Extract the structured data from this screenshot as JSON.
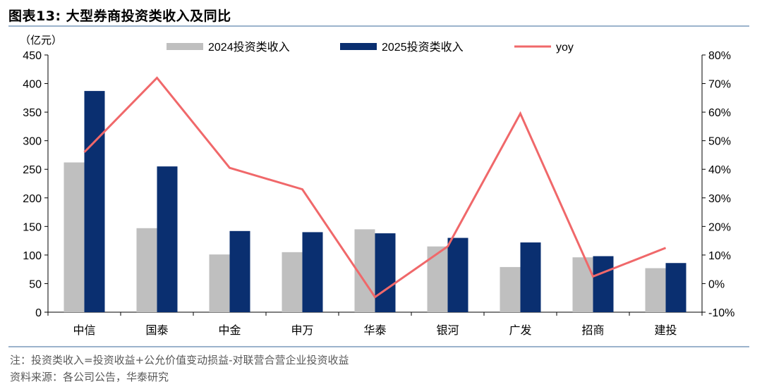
{
  "header": {
    "title": "图表13:   大型券商投资类收入及同比"
  },
  "footer": {
    "note": "注：投资类收入=投资收益+公允价值变动损益-对联营合营企业投资收益",
    "source": "资料来源：各公司公告，华泰研究"
  },
  "colors": {
    "s2024": "#bfbfbf",
    "s2025": "#0a2f70",
    "yoy": "#f0686a",
    "rule": "#9bb3cc"
  },
  "chart_data": {
    "type": "bar",
    "ylabel": "（亿元）",
    "ylim": [
      0,
      450
    ],
    "y2lim": [
      -0.1,
      0.8
    ],
    "y_ticks": [
      "0",
      "50",
      "100",
      "150",
      "200",
      "250",
      "300",
      "350",
      "400",
      "450"
    ],
    "y2_ticks": [
      "-10%",
      "0%",
      "10%",
      "20%",
      "30%",
      "40%",
      "50%",
      "60%",
      "70%",
      "80%"
    ],
    "legend_position": "top",
    "categories": [
      "中信",
      "国泰",
      "中金",
      "申万",
      "华泰",
      "银河",
      "广发",
      "招商",
      "建投"
    ],
    "series": [
      {
        "name": "2024投资类收入",
        "type": "bar",
        "values": [
          262,
          147,
          101,
          105,
          145,
          115,
          79,
          96,
          77
        ]
      },
      {
        "name": "2025投资类收入",
        "type": "bar",
        "values": [
          387,
          255,
          142,
          140,
          138,
          130,
          122,
          98,
          86
        ]
      },
      {
        "name": "yoy",
        "type": "line",
        "axis": "right",
        "values": [
          0.46,
          0.72,
          0.405,
          0.33,
          -0.047,
          0.13,
          0.595,
          0.025,
          0.125
        ]
      }
    ]
  }
}
